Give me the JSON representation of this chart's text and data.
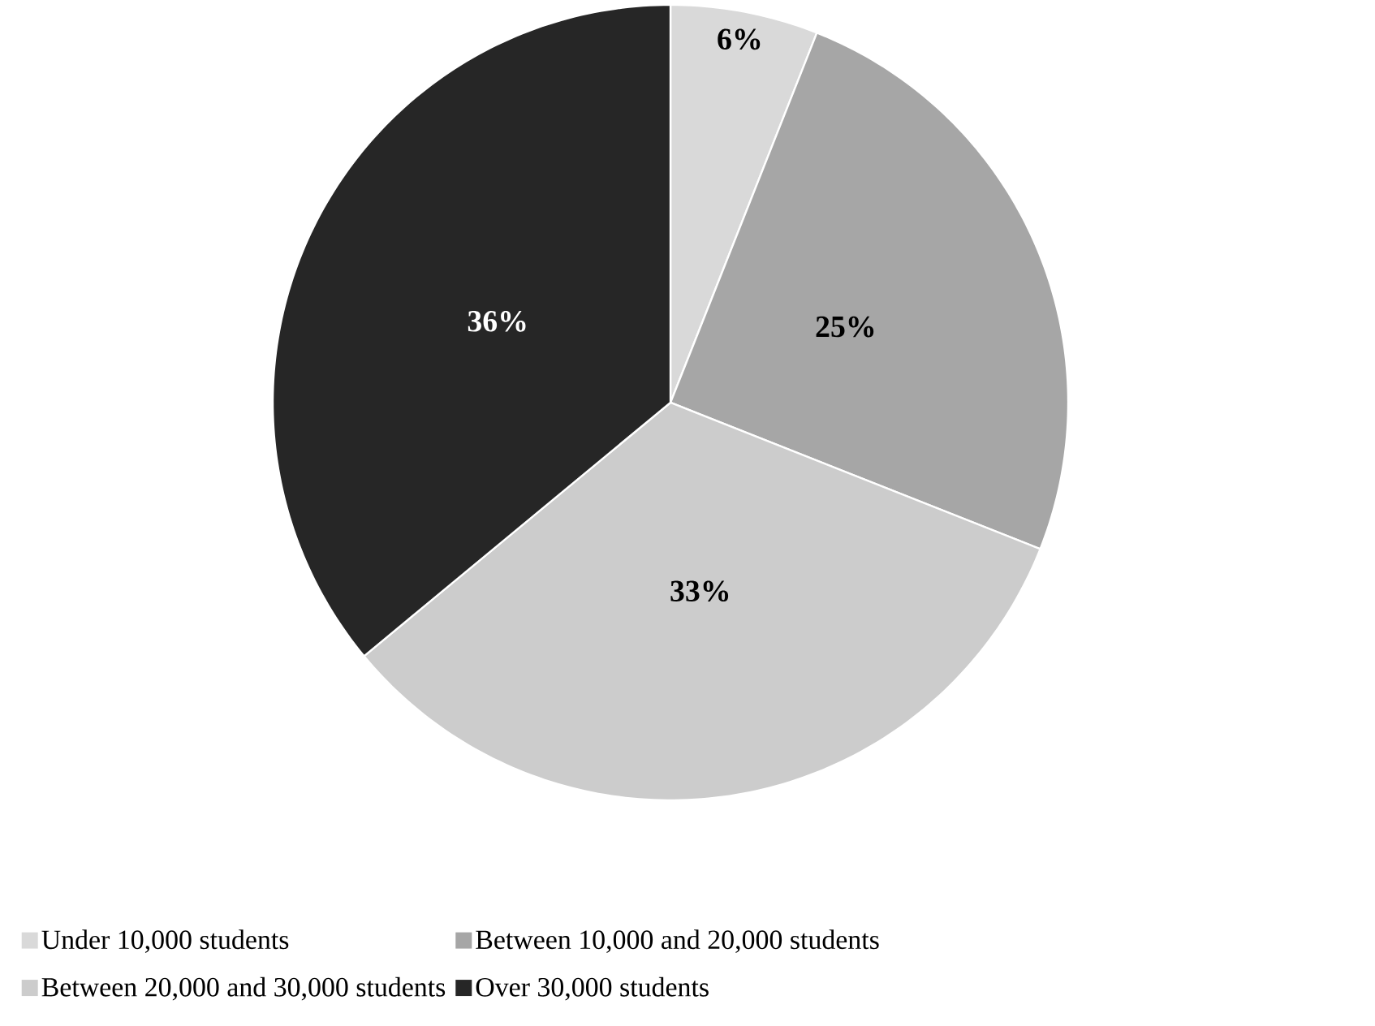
{
  "chart_data": {
    "type": "pie",
    "categories": [
      "Under 10,000 students",
      "Between 10,000 and 20,000 students",
      "Between 20,000 and 30,000 students",
      "Over 30,000 students"
    ],
    "values": [
      6,
      25,
      33,
      36
    ],
    "colors": [
      "#d9d9d9",
      "#a6a6a6",
      "#cccccc",
      "#262626"
    ],
    "value_labels": [
      "6%",
      "25%",
      "33%",
      "36%"
    ],
    "legend": "bottom"
  }
}
